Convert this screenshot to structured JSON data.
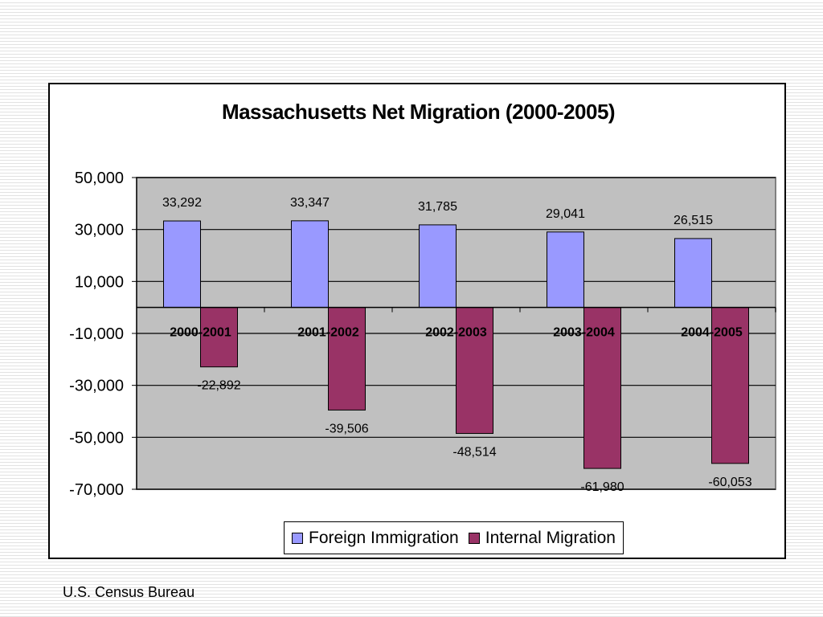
{
  "chart_data": {
    "type": "bar",
    "title": "Massachusetts Net Migration (2000-2005)",
    "xlabel": "",
    "ylabel": "",
    "categories": [
      "2000-2001",
      "2001-2002",
      "2002-2003",
      "2003-2004",
      "2004-2005"
    ],
    "series": [
      {
        "name": "Foreign Immigration",
        "color": "#9999ff",
        "values": [
          33292,
          33347,
          31785,
          29041,
          26515
        ]
      },
      {
        "name": "Internal Migration",
        "color": "#993366",
        "values": [
          -22892,
          -39506,
          -48514,
          -61980,
          -60053
        ]
      }
    ],
    "data_labels": [
      [
        "33,292",
        "33,347",
        "31,785",
        "29,041",
        "26,515"
      ],
      [
        "-22,892",
        "-39,506",
        "-48,514",
        "-61,980",
        "-60,053"
      ]
    ],
    "ylim": [
      -70000,
      50000
    ],
    "yticks": [
      50000,
      30000,
      10000,
      -10000,
      -30000,
      -50000,
      -70000
    ],
    "ytick_labels": [
      "50,000",
      "30,000",
      "10,000",
      "-10,000",
      "-30,000",
      "-50,000",
      "-70,000"
    ],
    "grid": true,
    "plot_background": "#c0c0c0",
    "legend_position": "bottom"
  },
  "source_note": "U.S. Census Bureau"
}
